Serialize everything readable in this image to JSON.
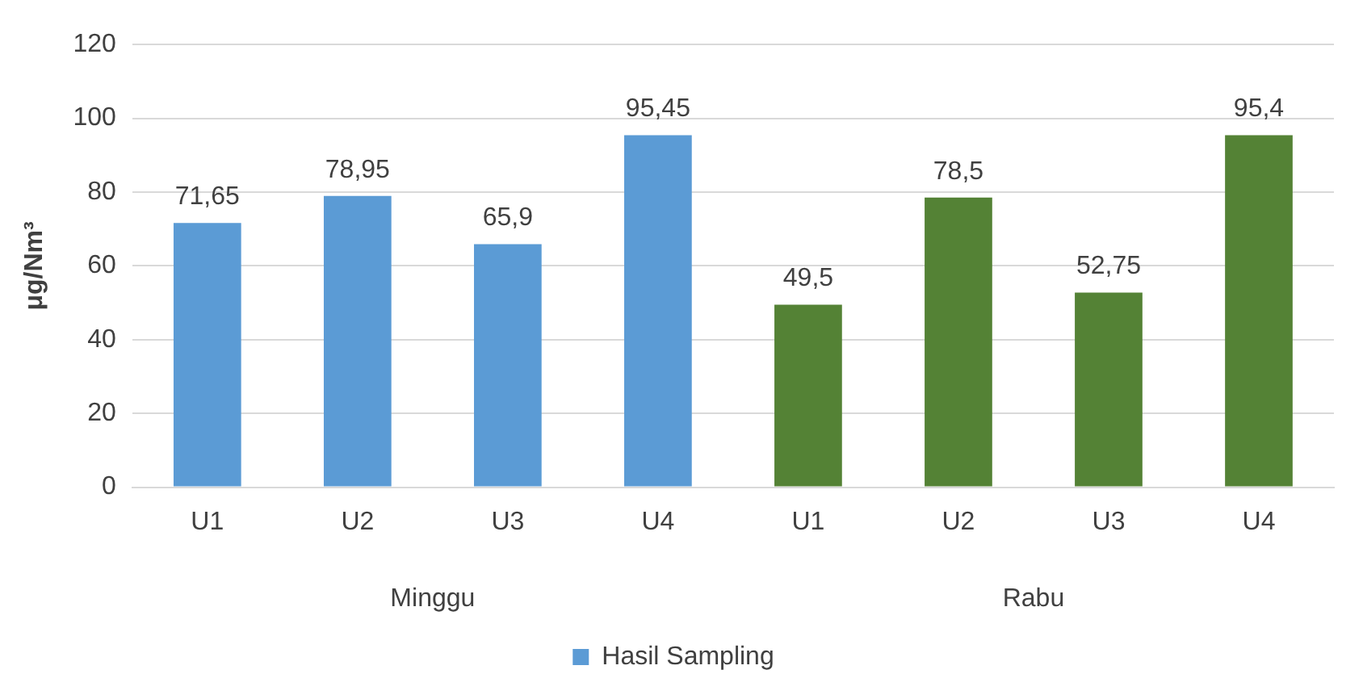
{
  "chart_data": {
    "type": "bar",
    "ylabel": "μg/Nm³",
    "categories": [
      "U1",
      "U2",
      "U3",
      "U4",
      "U1",
      "U2",
      "U3",
      "U4"
    ],
    "series": [
      {
        "name": "Hasil Sampling",
        "colors": [
          "#5b9bd5",
          "#5b9bd5",
          "#5b9bd5",
          "#5b9bd5",
          "#548235",
          "#548235",
          "#548235",
          "#548235"
        ],
        "values": [
          71.65,
          78.95,
          65.9,
          95.45,
          49.5,
          78.5,
          52.75,
          95.4
        ],
        "value_labels": [
          "71,65",
          "78,95",
          "65,9",
          "95,45",
          "49,5",
          "78,5",
          "52,75",
          "95,4"
        ]
      }
    ],
    "annotations": [
      "Minggu",
      "Rabu"
    ],
    "ylim": [
      0,
      120
    ],
    "yticks": [
      0,
      20,
      40,
      60,
      80,
      100,
      120
    ],
    "grid": "y",
    "legend": "bottom"
  }
}
